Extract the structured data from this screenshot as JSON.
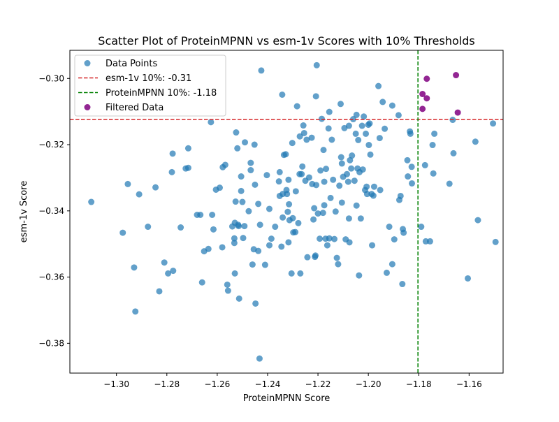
{
  "chart_data": {
    "type": "scatter",
    "title": "Scatter Plot of ProteinMPNN vs esm-1v Scores with 10% Thresholds",
    "xlabel": "ProteinMPNN Score",
    "ylabel": "esm-1v Score",
    "xlim": [
      -1.3185,
      -1.1465
    ],
    "ylim": [
      -0.389,
      -0.2915
    ],
    "xticks": [
      -1.3,
      -1.28,
      -1.26,
      -1.24,
      -1.22,
      -1.2,
      -1.18,
      -1.16
    ],
    "xtick_labels": [
      "−1.30",
      "−1.28",
      "−1.26",
      "−1.24",
      "−1.22",
      "−1.20",
      "−1.18",
      "−1.16"
    ],
    "yticks": [
      -0.38,
      -0.36,
      -0.34,
      -0.32,
      -0.3
    ],
    "ytick_labels": [
      "−0.38",
      "−0.36",
      "−0.34",
      "−0.32",
      "−0.30"
    ],
    "grid": false,
    "legend_position": "upper-left",
    "thresholds": {
      "esm1v": {
        "value": -0.3124,
        "label": "esm-1v 10%: -0.31",
        "color": "#d62728",
        "style": "dashed",
        "orientation": "horizontal"
      },
      "proteinmpnn": {
        "value": -1.1803,
        "label": "ProteinMPNN 10%: -1.18",
        "color": "#008000",
        "style": "dashed",
        "orientation": "vertical"
      }
    },
    "series": [
      {
        "name": "Data Points",
        "color": "#1f77b4",
        "points": [
          [
            -1.31,
            -0.3373
          ],
          [
            -1.2975,
            -0.3466
          ],
          [
            -1.2955,
            -0.3319
          ],
          [
            -1.293,
            -0.3571
          ],
          [
            -1.2925,
            -0.3704
          ],
          [
            -1.291,
            -0.335
          ],
          [
            -1.2875,
            -0.3448
          ],
          [
            -1.2845,
            -0.3329
          ],
          [
            -1.283,
            -0.3643
          ],
          [
            -1.281,
            -0.3556
          ],
          [
            -1.2795,
            -0.3589
          ],
          [
            -1.278,
            -0.3283
          ],
          [
            -1.2777,
            -0.3227
          ],
          [
            -1.2775,
            -0.3581
          ],
          [
            -1.2745,
            -0.345
          ],
          [
            -1.2725,
            -0.3272
          ],
          [
            -1.2715,
            -0.3211
          ],
          [
            -1.2715,
            -0.327
          ],
          [
            -1.268,
            -0.3412
          ],
          [
            -1.2667,
            -0.3412
          ],
          [
            -1.266,
            -0.3616
          ],
          [
            -1.2652,
            -0.3522
          ],
          [
            -1.2635,
            -0.3515
          ],
          [
            -1.2625,
            -0.3132
          ],
          [
            -1.262,
            -0.3412
          ],
          [
            -1.2615,
            -0.3456
          ],
          [
            -1.2605,
            -0.3336
          ],
          [
            -1.259,
            -0.333
          ],
          [
            -1.258,
            -0.351
          ],
          [
            -1.2578,
            -0.3268
          ],
          [
            -1.2568,
            -0.3261
          ],
          [
            -1.256,
            -0.3623
          ],
          [
            -1.2557,
            -0.3641
          ],
          [
            -1.254,
            -0.3447
          ],
          [
            -1.253,
            -0.3436
          ],
          [
            -1.2532,
            -0.3483
          ],
          [
            -1.2532,
            -0.3497
          ],
          [
            -1.253,
            -0.3589
          ],
          [
            -1.2527,
            -0.3372
          ],
          [
            -1.2525,
            -0.3163
          ],
          [
            -1.252,
            -0.3211
          ],
          [
            -1.2515,
            -0.3446
          ],
          [
            -1.2517,
            -0.3442
          ],
          [
            -1.2513,
            -0.3665
          ],
          [
            -1.2505,
            -0.3296
          ],
          [
            -1.2505,
            -0.334
          ],
          [
            -1.25,
            -0.3373
          ],
          [
            -1.2497,
            -0.3482
          ],
          [
            -1.2492,
            -0.3446
          ],
          [
            -1.249,
            -0.3193
          ],
          [
            -1.2475,
            -0.3401
          ],
          [
            -1.2467,
            -0.3277
          ],
          [
            -1.2467,
            -0.3255
          ],
          [
            -1.246,
            -0.3562
          ],
          [
            -1.2455,
            -0.3516
          ],
          [
            -1.2452,
            -0.32
          ],
          [
            -1.245,
            -0.3321
          ],
          [
            -1.2448,
            -0.368
          ],
          [
            -1.2437,
            -0.3521
          ],
          [
            -1.2437,
            -0.3379
          ],
          [
            -1.2432,
            -0.3846
          ],
          [
            -1.243,
            -0.3442
          ],
          [
            -1.2425,
            -0.2976
          ],
          [
            -1.241,
            -0.3563
          ],
          [
            -1.2403,
            -0.3292
          ],
          [
            -1.2393,
            -0.3394
          ],
          [
            -1.2393,
            -0.3504
          ],
          [
            -1.2385,
            -0.3484
          ],
          [
            -1.237,
            -0.3448
          ],
          [
            -1.2355,
            -0.3311
          ],
          [
            -1.2352,
            -0.3283
          ],
          [
            -1.2352,
            -0.3355
          ],
          [
            -1.2345,
            -0.3508
          ],
          [
            -1.2342,
            -0.3049
          ],
          [
            -1.2335,
            -0.3231
          ],
          [
            -1.234,
            -0.3349
          ],
          [
            -1.234,
            -0.342
          ],
          [
            -1.2328,
            -0.3229
          ],
          [
            -1.2325,
            -0.3337
          ],
          [
            -1.2323,
            -0.3349
          ],
          [
            -1.232,
            -0.3403
          ],
          [
            -1.2315,
            -0.338
          ],
          [
            -1.2317,
            -0.3306
          ],
          [
            -1.2317,
            -0.3495
          ],
          [
            -1.2313,
            -0.3428
          ],
          [
            -1.2305,
            -0.3589
          ],
          [
            -1.2302,
            -0.3195
          ],
          [
            -1.23,
            -0.3422
          ],
          [
            -1.2298,
            -0.3465
          ],
          [
            -1.229,
            -0.3464
          ],
          [
            -1.2288,
            -0.3341
          ],
          [
            -1.2283,
            -0.3084
          ],
          [
            -1.2278,
            -0.3437
          ],
          [
            -1.2273,
            -0.3289
          ],
          [
            -1.227,
            -0.3589
          ],
          [
            -1.2272,
            -0.3175
          ],
          [
            -1.2265,
            -0.3289
          ],
          [
            -1.2262,
            -0.3266
          ],
          [
            -1.2258,
            -0.3142
          ],
          [
            -1.2255,
            -0.3165
          ],
          [
            -1.225,
            -0.3309
          ],
          [
            -1.2245,
            -0.3185
          ],
          [
            -1.2242,
            -0.354
          ],
          [
            -1.2235,
            -0.3299
          ],
          [
            -1.2225,
            -0.3179
          ],
          [
            -1.2223,
            -0.3319
          ],
          [
            -1.2218,
            -0.3426
          ],
          [
            -1.2215,
            -0.3392
          ],
          [
            -1.2212,
            -0.3539
          ],
          [
            -1.221,
            -0.3535
          ],
          [
            -1.2205,
            -0.296
          ],
          [
            -1.2208,
            -0.3054
          ],
          [
            -1.2207,
            -0.3322
          ],
          [
            -1.22,
            -0.3408
          ],
          [
            -1.2193,
            -0.3484
          ],
          [
            -1.219,
            -0.3278
          ],
          [
            -1.2185,
            -0.3122
          ],
          [
            -1.218,
            -0.3406
          ],
          [
            -1.2178,
            -0.3216
          ],
          [
            -1.2175,
            -0.3312
          ],
          [
            -1.2175,
            -0.3383
          ],
          [
            -1.217,
            -0.3484
          ],
          [
            -1.2168,
            -0.3273
          ],
          [
            -1.2163,
            -0.3504
          ],
          [
            -1.2158,
            -0.3151
          ],
          [
            -1.2155,
            -0.3101
          ],
          [
            -1.2155,
            -0.3483
          ],
          [
            -1.215,
            -0.3361
          ],
          [
            -1.2145,
            -0.3185
          ],
          [
            -1.214,
            -0.3306
          ],
          [
            -1.2135,
            -0.3485
          ],
          [
            -1.213,
            -0.3402
          ],
          [
            -1.2125,
            -0.3542
          ],
          [
            -1.212,
            -0.3561
          ],
          [
            -1.2115,
            -0.3324
          ],
          [
            -1.211,
            -0.3077
          ],
          [
            -1.2108,
            -0.3238
          ],
          [
            -1.2105,
            -0.3257
          ],
          [
            -1.2105,
            -0.3375
          ],
          [
            -1.21,
            -0.3297
          ],
          [
            -1.2095,
            -0.315
          ],
          [
            -1.209,
            -0.3486
          ],
          [
            -1.2085,
            -0.3289
          ],
          [
            -1.208,
            -0.3312
          ],
          [
            -1.2077,
            -0.3423
          ],
          [
            -1.2075,
            -0.3495
          ],
          [
            -1.2077,
            -0.3143
          ],
          [
            -1.2073,
            -0.3247
          ],
          [
            -1.2068,
            -0.3272
          ],
          [
            -1.2065,
            -0.3233
          ],
          [
            -1.206,
            -0.3123
          ],
          [
            -1.2055,
            -0.3309
          ],
          [
            -1.205,
            -0.3167
          ],
          [
            -1.2047,
            -0.311
          ],
          [
            -1.2047,
            -0.3384
          ],
          [
            -1.2043,
            -0.3272
          ],
          [
            -1.204,
            -0.3186
          ],
          [
            -1.2037,
            -0.3595
          ],
          [
            -1.2035,
            -0.3283
          ],
          [
            -1.203,
            -0.3423
          ],
          [
            -1.2025,
            -0.3143
          ],
          [
            -1.2022,
            -0.3275
          ],
          [
            -1.2018,
            -0.3115
          ],
          [
            -1.2013,
            -0.3337
          ],
          [
            -1.201,
            -0.3167
          ],
          [
            -1.2007,
            -0.3327
          ],
          [
            -1.2005,
            -0.3349
          ],
          [
            -1.2,
            -0.314
          ],
          [
            -1.1998,
            -0.3201
          ],
          [
            -1.1995,
            -0.3136
          ],
          [
            -1.1992,
            -0.323
          ],
          [
            -1.1987,
            -0.3349
          ],
          [
            -1.1985,
            -0.3504
          ],
          [
            -1.198,
            -0.3354
          ],
          [
            -1.1977,
            -0.3327
          ],
          [
            -1.196,
            -0.3023
          ],
          [
            -1.1955,
            -0.318
          ],
          [
            -1.1953,
            -0.3337
          ],
          [
            -1.1943,
            -0.3071
          ],
          [
            -1.1935,
            -0.3152
          ],
          [
            -1.1927,
            -0.3587
          ],
          [
            -1.1917,
            -0.3448
          ],
          [
            -1.1905,
            -0.3561
          ],
          [
            -1.1905,
            -0.3082
          ],
          [
            -1.1897,
            -0.3486
          ],
          [
            -1.188,
            -0.3111
          ],
          [
            -1.1877,
            -0.3367
          ],
          [
            -1.1872,
            -0.3355
          ],
          [
            -1.1865,
            -0.3621
          ],
          [
            -1.1863,
            -0.3455
          ],
          [
            -1.186,
            -0.3466
          ],
          [
            -1.1845,
            -0.3247
          ],
          [
            -1.1843,
            -0.3296
          ],
          [
            -1.1835,
            -0.316
          ],
          [
            -1.1833,
            -0.3167
          ],
          [
            -1.1828,
            -0.3267
          ],
          [
            -1.1827,
            -0.3317
          ],
          [
            -1.179,
            -0.3448
          ],
          [
            -1.1775,
            -0.3262
          ],
          [
            -1.1772,
            -0.3492
          ],
          [
            -1.1755,
            -0.3492
          ],
          [
            -1.1745,
            -0.3201
          ],
          [
            -1.1742,
            -0.3287
          ],
          [
            -1.1738,
            -0.3167
          ],
          [
            -1.1678,
            -0.3318
          ],
          [
            -1.1665,
            -0.3125
          ],
          [
            -1.1662,
            -0.3226
          ],
          [
            -1.1575,
            -0.3191
          ],
          [
            -1.1565,
            -0.3428
          ],
          [
            -1.1605,
            -0.3604
          ],
          [
            -1.1505,
            -0.3136
          ],
          [
            -1.1495,
            -0.3494
          ]
        ]
      },
      {
        "name": "Filtered Data",
        "color": "#800080",
        "points": [
          [
            -1.1785,
            -0.3047
          ],
          [
            -1.1785,
            -0.3092
          ],
          [
            -1.1768,
            -0.3001
          ],
          [
            -1.1768,
            -0.306
          ],
          [
            -1.1652,
            -0.299
          ],
          [
            -1.1645,
            -0.3103
          ]
        ]
      }
    ]
  }
}
